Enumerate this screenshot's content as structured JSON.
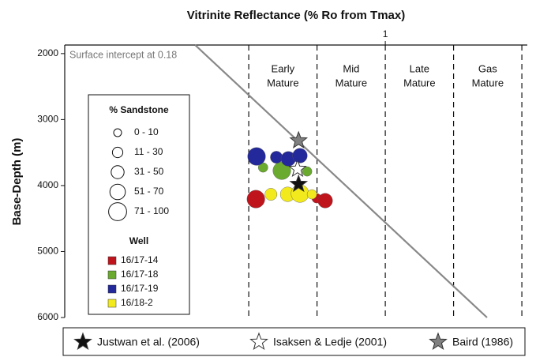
{
  "chart_data": {
    "type": "scatter",
    "title": "Vitrinite Reflectance (% Ro from Tmax)",
    "y_label": "Base-Depth (m)",
    "xlim": [
      0.061,
      1.416
    ],
    "xticks": [
      1
    ],
    "ylim": [
      1870,
      6000
    ],
    "yticks": [
      2000,
      3000,
      4000,
      5000,
      6000
    ],
    "y_inverted": true,
    "zone_boundaries": [
      0.6,
      0.8,
      1.0,
      1.2,
      1.4
    ],
    "zones": [
      [
        "Early",
        "Mature"
      ],
      [
        "Mid",
        "Mature"
      ],
      [
        "Late",
        "Mature"
      ],
      [
        "Gas",
        "Mature"
      ]
    ],
    "trend_line": {
      "x": [
        0.443,
        1.298
      ],
      "y": [
        1870,
        6000
      ],
      "color": "#888888"
    },
    "annotation": "Surface intercept at 0.18",
    "size_legend": {
      "title": "% Sandstone",
      "labels": [
        "0 - 10",
        "11 - 30",
        "31 - 50",
        "51 - 70",
        "71 - 100"
      ]
    },
    "well_legend_title": "Well",
    "series": [
      {
        "name": "16/17-14",
        "color": "#c0141c",
        "x": [
          0.621,
          0.799,
          0.824
        ],
        "values": [
          4205,
          4193,
          4229
        ],
        "sizes": [
          85,
          20,
          60
        ]
      },
      {
        "name": "16/17-18",
        "color": "#6aaa2e",
        "x": [
          0.642,
          0.697,
          0.771
        ],
        "values": [
          3726,
          3774,
          3786
        ],
        "sizes": [
          20,
          85,
          20
        ]
      },
      {
        "name": "16/17-19",
        "color": "#23289a",
        "x": [
          0.623,
          0.681,
          0.716,
          0.75
        ],
        "values": [
          3559,
          3571,
          3595,
          3547
        ],
        "sizes": [
          85,
          40,
          60,
          60
        ]
      },
      {
        "name": "16/18-2",
        "color": "#f2ea1c",
        "x": [
          0.665,
          0.714,
          0.75,
          0.785
        ],
        "values": [
          4133,
          4133,
          4121,
          4133
        ],
        "sizes": [
          40,
          60,
          85,
          20
        ]
      }
    ],
    "references": [
      {
        "name": "Justwan et al. (2006)",
        "color": "#111111",
        "x": 0.746,
        "y": 3978
      },
      {
        "name": "Isaksen & Ledje (2001)",
        "color": "#ffffff",
        "x": 0.743,
        "y": 3750
      },
      {
        "name": "Baird (1986)",
        "color": "#808080",
        "x": 0.746,
        "y": 3319
      }
    ]
  }
}
